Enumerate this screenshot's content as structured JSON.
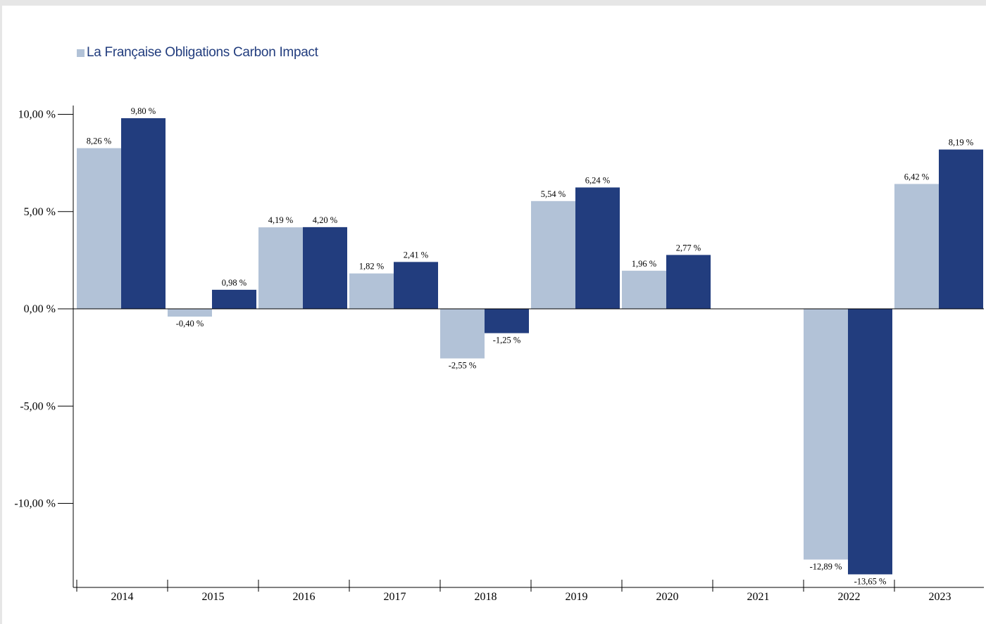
{
  "chart_data": {
    "type": "bar",
    "categories": [
      "2014",
      "2015",
      "2016",
      "2017",
      "2018",
      "2019",
      "2020",
      "2021",
      "2022",
      "2023"
    ],
    "series": [
      {
        "name": "La Française Obligations Carbon Impact",
        "color": "#b2c2d7",
        "values": [
          8.26,
          -0.4,
          4.19,
          1.82,
          -2.55,
          5.54,
          1.96,
          null,
          -12.89,
          6.42
        ],
        "labels": [
          "8,26 %",
          "-0,40 %",
          "4,19 %",
          "1,82 %",
          "-2,55 %",
          "5,54 %",
          "1,96 %",
          "",
          "-12,89 %",
          "6,42 %"
        ]
      },
      {
        "name": "",
        "color": "#223d7e",
        "values": [
          9.8,
          0.98,
          4.2,
          2.41,
          -1.25,
          6.24,
          2.77,
          null,
          -13.65,
          8.19
        ],
        "labels": [
          "9,80 %",
          "0,98 %",
          "4,20 %",
          "2,41 %",
          "-1,25 %",
          "6,24 %",
          "2,77 %",
          "",
          "-13,65 %",
          "8,19 %"
        ]
      }
    ],
    "yticks": [
      10,
      5,
      0,
      -5,
      -10
    ],
    "ytick_labels": [
      "10,00 %",
      "5,00 %",
      "0,00 %",
      "-5,00 %",
      "-10,00 %"
    ],
    "ylim": [
      -14.3,
      10.5
    ],
    "legend_position": "top-left",
    "grid": false,
    "title": "",
    "xlabel": "",
    "ylabel": ""
  }
}
